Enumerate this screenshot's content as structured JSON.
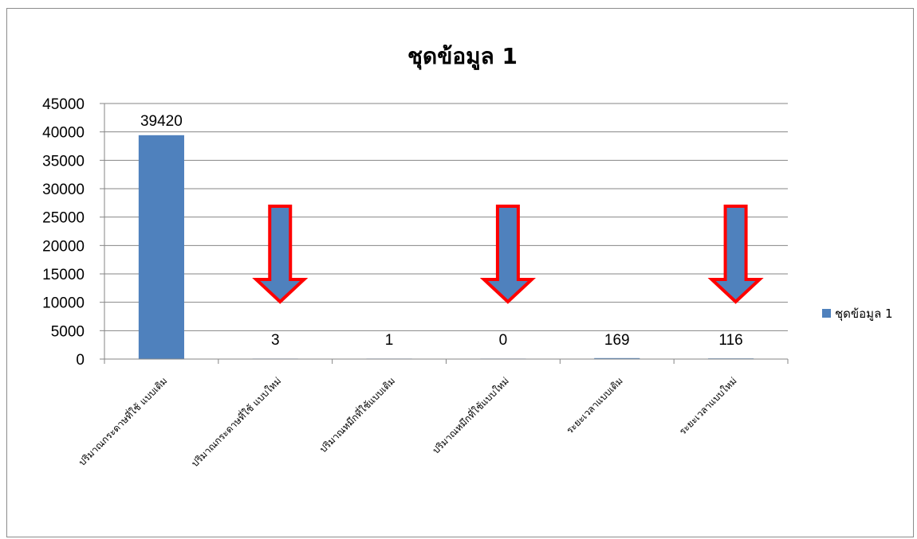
{
  "chart_data": {
    "type": "bar",
    "title": "ชุดข้อมูล 1",
    "categories": [
      "ปริมาณกระดาษที่ใช้ แบบเดิม",
      "ปริมาณกระดาษที่ใช้ แบบใหม่",
      "ปริมาณหมึกที่ใช้แบบเดิม",
      "ปริมาณหมึกที่ใช้แบบใหม่",
      "ระยะเวลาแบบเดิม",
      "ระยะเวลาแบบใหม่"
    ],
    "series": [
      {
        "name": "ชุดข้อมูล 1",
        "values": [
          39420,
          3,
          1,
          0,
          169,
          116
        ]
      }
    ],
    "ylim": [
      0,
      45000
    ],
    "yticks": [
      0,
      5000,
      10000,
      15000,
      20000,
      25000,
      30000,
      35000,
      40000,
      45000
    ],
    "grid": true,
    "legend": "right",
    "bar_color": "#4f81bd",
    "annotations": {
      "arrow_categories": [
        1,
        3,
        5
      ],
      "arrow_fill": "#4f81bd",
      "arrow_stroke": "#ff0000"
    }
  }
}
